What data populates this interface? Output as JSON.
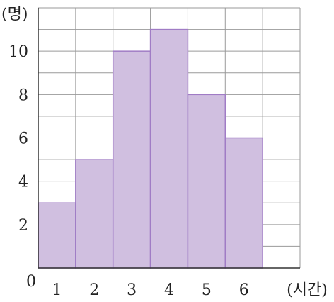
{
  "chart_data": {
    "type": "bar",
    "categories": [
      "1",
      "2",
      "3",
      "4",
      "5",
      "6"
    ],
    "values": [
      3,
      5,
      10,
      11,
      8,
      6
    ],
    "ylabel": "(명)",
    "xlabel": "(시간)",
    "origin_label": "0",
    "y_ticks": [
      "2",
      "4",
      "6",
      "8",
      "10"
    ],
    "y_tick_values": [
      2,
      4,
      6,
      8,
      10
    ],
    "ylim": [
      0,
      12
    ],
    "x_slots": 7,
    "grid": true,
    "colors": {
      "bar_fill": "#d0bfe0",
      "bar_stroke": "#a07cc5",
      "grid": "#9a9a9a",
      "axis": "#333333"
    }
  }
}
